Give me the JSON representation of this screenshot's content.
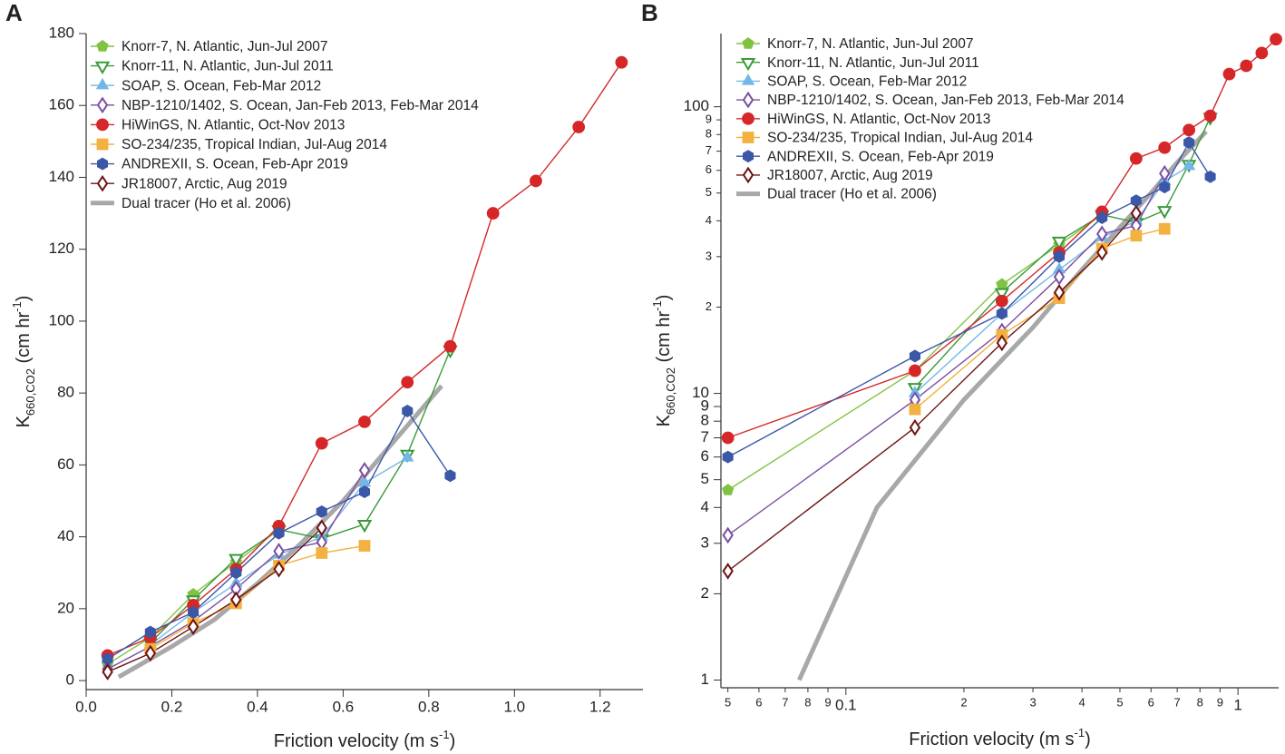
{
  "chart_data": [
    {
      "type": "line",
      "panel": "A",
      "xlim": [
        0,
        1.3
      ],
      "ylim": [
        -2.5,
        180
      ],
      "log": false,
      "xticks": [
        {
          "value": 0,
          "label": "0.0"
        },
        0.2,
        0.4,
        0.6,
        0.8,
        {
          "value": 1,
          "label": "1.0"
        },
        1.2
      ],
      "yticks": [
        0,
        20,
        40,
        60,
        80,
        100,
        120,
        140,
        160,
        180
      ],
      "xlabel": {
        "text": "Friction velocity (m s",
        "sup": "-1",
        "end": ")"
      },
      "ylabel": {
        "text": "K",
        "sub": "660,CO2",
        "mid": " (cm hr",
        "sup": "-1",
        "end": ")"
      },
      "series": [
        {
          "name": "Knorr-7, N. Atlantic, Jun-Jul 2007",
          "color": "#80c342",
          "marker": "pentagon",
          "x": [
            0.05,
            0.15,
            0.25,
            0.35,
            0.45
          ],
          "values": [
            4.6,
            12,
            24,
            33,
            42
          ]
        },
        {
          "name": "Knorr-11, N. Atlantic, Jun-Jul 2011",
          "color": "#3a9a3a",
          "marker": "triangle-down-open",
          "x": [
            0.15,
            0.25,
            0.35,
            0.45,
            0.55,
            0.65,
            0.75,
            0.85
          ],
          "values": [
            10.5,
            22.5,
            34,
            42,
            39.5,
            43.5,
            63,
            92
          ]
        },
        {
          "name": "SOAP, S. Ocean, Feb-Mar 2012",
          "color": "#72b7e6",
          "marker": "triangle",
          "x": [
            0.15,
            0.25,
            0.35,
            0.45,
            0.55,
            0.65,
            0.75
          ],
          "values": [
            10,
            19,
            27,
            35,
            40,
            55,
            62
          ]
        },
        {
          "name": "NBP-1210/1402, S. Ocean, Jan-Feb 2013, Feb-Mar 2014",
          "color": "#7a4ea3",
          "marker": "diamond-open",
          "x": [
            0.05,
            0.15,
            0.25,
            0.35,
            0.45,
            0.55,
            0.65
          ],
          "values": [
            3.2,
            9.5,
            16.5,
            25.5,
            36,
            38.5,
            58.5
          ]
        },
        {
          "name": "HiWinGS, N. Atlantic, Oct-Nov 2013",
          "color": "#d62728",
          "marker": "circle",
          "x": [
            0.05,
            0.15,
            0.25,
            0.35,
            0.45,
            0.55,
            0.65,
            0.75,
            0.85,
            0.95,
            1.05,
            1.15,
            1.25
          ],
          "values": [
            7,
            12,
            21,
            31,
            43,
            66,
            72,
            83,
            93,
            130,
            139,
            154,
            172
          ]
        },
        {
          "name": "SO-234/235, Tropical Indian, Jul-Aug 2014",
          "color": "#f3b13f",
          "marker": "square",
          "x": [
            0.15,
            0.25,
            0.35,
            0.45,
            0.55,
            0.65
          ],
          "values": [
            8.8,
            16,
            21.5,
            32,
            35.5,
            37.5
          ]
        },
        {
          "name": "ANDREXII, S. Ocean, Feb-Apr 2019",
          "color": "#3b57a8",
          "marker": "hexagon",
          "x": [
            0.05,
            0.15,
            0.25,
            0.35,
            0.45,
            0.55,
            0.65,
            0.75,
            0.85
          ],
          "values": [
            6,
            13.5,
            19,
            30,
            41,
            47,
            52.5,
            75,
            57
          ]
        },
        {
          "name": "JR18007, Arctic, Aug 2019",
          "color": "#6e1414",
          "marker": "diamond-open",
          "x": [
            0.05,
            0.15,
            0.25,
            0.35,
            0.45,
            0.55
          ],
          "values": [
            2.4,
            7.6,
            15,
            22.5,
            31,
            42.5
          ]
        },
        {
          "name": "Dual tracer (Ho et al. 2006)",
          "color": "#a8a8a8",
          "marker": "none",
          "x": [
            0.076,
            0.12,
            0.2,
            0.3,
            0.4,
            0.5,
            0.6,
            0.7,
            0.83
          ],
          "values": [
            1,
            4,
            9.5,
            17,
            27,
            38,
            50,
            64,
            82
          ]
        }
      ]
    },
    {
      "type": "line",
      "panel": "B",
      "xlim": [
        0.048,
        1.27
      ],
      "ylim": [
        0.94,
        180
      ],
      "log": true,
      "xticks": [
        {
          "value": 0.05,
          "label": "5"
        },
        {
          "value": 0.06,
          "label": "6"
        },
        {
          "value": 0.07,
          "label": "7"
        },
        {
          "value": 0.08,
          "label": "8"
        },
        {
          "value": 0.09,
          "label": "9"
        },
        0.1,
        {
          "value": 0.2,
          "label": "2"
        },
        {
          "value": 0.3,
          "label": "3"
        },
        {
          "value": 0.4,
          "label": "4"
        },
        {
          "value": 0.5,
          "label": "5"
        },
        {
          "value": 0.6,
          "label": "6"
        },
        {
          "value": 0.7,
          "label": "7"
        },
        {
          "value": 0.8,
          "label": "8"
        },
        {
          "value": 0.9,
          "label": "9"
        },
        1
      ],
      "yticks": [
        1,
        2,
        3,
        4,
        5,
        6,
        7,
        8,
        9,
        10,
        {
          "value": 20,
          "label": "2"
        },
        {
          "value": 30,
          "label": "3"
        },
        {
          "value": 40,
          "label": "4"
        },
        {
          "value": 50,
          "label": "5"
        },
        {
          "value": 60,
          "label": "6"
        },
        {
          "value": 70,
          "label": "7"
        },
        {
          "value": 80,
          "label": "8"
        },
        {
          "value": 90,
          "label": "9"
        },
        100
      ],
      "xlabel": {
        "text": "Friction velocity (m s",
        "sup": "-1",
        "end": ")"
      },
      "ylabel": {
        "text": "K",
        "sub": "660,CO2",
        "mid": " (cm hr",
        "sup": "-1",
        "end": ")"
      },
      "series": [
        {
          "name": "Knorr-7, N. Atlantic, Jun-Jul 2007",
          "color": "#80c342",
          "marker": "pentagon",
          "x": [
            0.05,
            0.15,
            0.25,
            0.35,
            0.45
          ],
          "values": [
            4.6,
            12,
            24,
            33,
            42
          ]
        },
        {
          "name": "Knorr-11, N. Atlantic, Jun-Jul 2011",
          "color": "#3a9a3a",
          "marker": "triangle-down-open",
          "x": [
            0.15,
            0.25,
            0.35,
            0.45,
            0.55,
            0.65,
            0.75,
            0.85
          ],
          "values": [
            10.5,
            22.5,
            34,
            42,
            39.5,
            43.5,
            63,
            92
          ]
        },
        {
          "name": "SOAP, S. Ocean, Feb-Mar 2012",
          "color": "#72b7e6",
          "marker": "triangle",
          "x": [
            0.15,
            0.25,
            0.35,
            0.45,
            0.55,
            0.65,
            0.75
          ],
          "values": [
            10,
            19,
            27,
            35,
            40,
            55,
            62
          ]
        },
        {
          "name": "NBP-1210/1402, S. Ocean, Jan-Feb 2013, Feb-Mar 2014",
          "color": "#7a4ea3",
          "marker": "diamond-open",
          "x": [
            0.05,
            0.15,
            0.25,
            0.35,
            0.45,
            0.55,
            0.65
          ],
          "values": [
            3.2,
            9.5,
            16.5,
            25.5,
            36,
            38.5,
            58.5
          ]
        },
        {
          "name": "HiWinGS, N. Atlantic, Oct-Nov 2013",
          "color": "#d62728",
          "marker": "circle",
          "x": [
            0.05,
            0.15,
            0.25,
            0.35,
            0.45,
            0.55,
            0.65,
            0.75,
            0.85,
            0.95,
            1.05,
            1.15,
            1.25
          ],
          "values": [
            7,
            12,
            21,
            31,
            43,
            66,
            72,
            83,
            93,
            130,
            139,
            154,
            172
          ]
        },
        {
          "name": "SO-234/235, Tropical Indian, Jul-Aug 2014",
          "color": "#f3b13f",
          "marker": "square",
          "x": [
            0.15,
            0.25,
            0.35,
            0.45,
            0.55,
            0.65
          ],
          "values": [
            8.8,
            16,
            21.5,
            32,
            35.5,
            37.5
          ]
        },
        {
          "name": "ANDREXII, S. Ocean, Feb-Apr 2019",
          "color": "#3b57a8",
          "marker": "hexagon",
          "x": [
            0.05,
            0.15,
            0.25,
            0.35,
            0.45,
            0.55,
            0.65,
            0.75,
            0.85
          ],
          "values": [
            6,
            13.5,
            19,
            30,
            41,
            47,
            52.5,
            75,
            57
          ]
        },
        {
          "name": "JR18007, Arctic, Aug 2019",
          "color": "#6e1414",
          "marker": "diamond-open",
          "x": [
            0.05,
            0.15,
            0.25,
            0.35,
            0.45,
            0.55
          ],
          "values": [
            2.4,
            7.6,
            15,
            22.5,
            31,
            42.5
          ]
        },
        {
          "name": "Dual tracer (Ho et al. 2006)",
          "color": "#a8a8a8",
          "marker": "none",
          "x": [
            0.076,
            0.12,
            0.2,
            0.3,
            0.4,
            0.5,
            0.6,
            0.7,
            0.83
          ],
          "values": [
            1,
            4,
            9.5,
            17,
            27,
            38,
            50,
            64,
            82
          ]
        }
      ]
    }
  ]
}
